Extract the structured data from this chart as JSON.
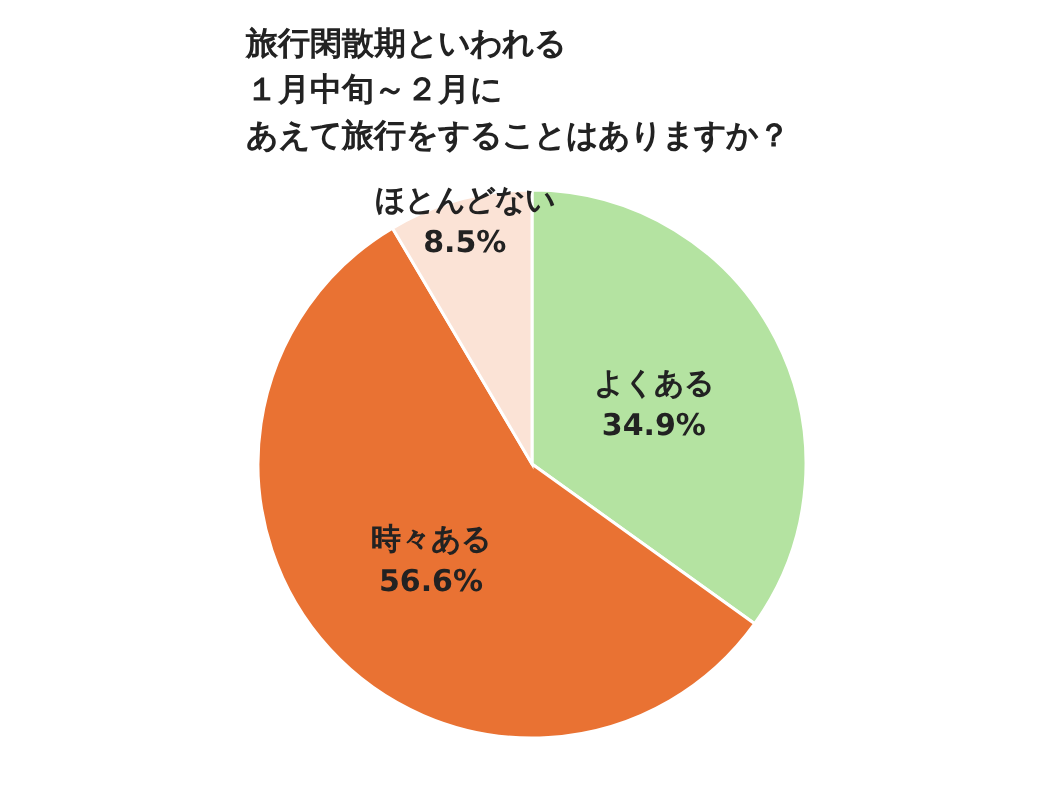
{
  "chart_data": {
    "type": "pie",
    "title": "旅行閑散期といわれる１月中旬～２月にあえて旅行をすることはありますか？",
    "categories": [
      "よくある",
      "時々ある",
      "ほとんどない"
    ],
    "values": [
      34.9,
      56.6,
      8.5
    ],
    "value_labels": [
      "34.9%",
      "56.6%",
      "8.5%"
    ],
    "colors": [
      "#b4e3a1",
      "#e97233",
      "#fbe3d6"
    ]
  }
}
